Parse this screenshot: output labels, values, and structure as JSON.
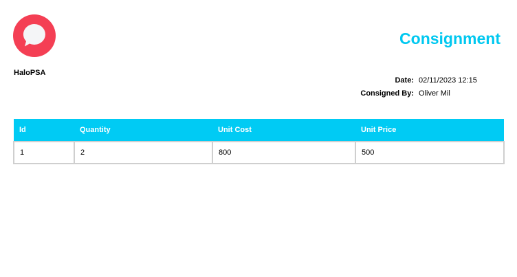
{
  "header": {
    "title": "Consignment",
    "company": "HaloPSA",
    "logo_color": "#f43f54",
    "accent": "#00cbf4"
  },
  "meta": [
    {
      "label": "Date:",
      "value": "02/11/2023 12:15"
    },
    {
      "label": "Consigned By:",
      "value": "Oliver Mil"
    }
  ],
  "table": {
    "columns": [
      "Id",
      "Quantity",
      "Unit Cost",
      "Unit Price"
    ],
    "rows": [
      [
        "1",
        "2",
        "800",
        "500"
      ]
    ]
  }
}
